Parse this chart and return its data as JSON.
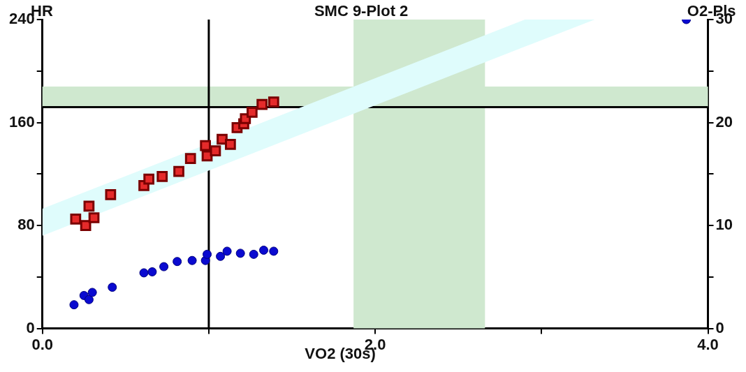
{
  "chart_data": {
    "type": "scatter",
    "title": "SMC 9-Plot 2",
    "xlabel": "VO2 (30s)",
    "ylabel": "HR",
    "y2label": "O2-Pls",
    "xlim": [
      0,
      4
    ],
    "xticks": [
      {
        "value": 0,
        "label": "0.0"
      },
      {
        "value": 1,
        "label": null
      },
      {
        "value": 2,
        "label": "2.0"
      },
      {
        "value": 3,
        "label": null
      },
      {
        "value": 4,
        "label": "4.0"
      }
    ],
    "ylim": [
      0,
      240
    ],
    "yticks": [
      0,
      {
        "value": 40,
        "label": null
      },
      80,
      {
        "value": 120,
        "label": null
      },
      160,
      {
        "value": 200,
        "label": null
      },
      240
    ],
    "y2lim": [
      0,
      30
    ],
    "y2ticks": [
      0,
      {
        "value": 5,
        "label": null
      },
      10,
      {
        "value": 15,
        "label": null
      },
      20,
      {
        "value": 25,
        "label": null
      },
      30
    ],
    "grid": false,
    "legend": false,
    "series": [
      {
        "type": "area",
        "color": "#dffcfc",
        "x": [
          0,
          2.9,
          3.32
        ],
        "values": [
          null,
          null,
          null
        ],
        "lower": [
          72,
          219,
          240
        ],
        "upper": [
          93,
          240,
          240
        ]
      },
      {
        "marker": "square",
        "color": "#e52a2a",
        "x": [
          0.2,
          0.26,
          0.31,
          0.28,
          0.41,
          0.61,
          0.64,
          0.72,
          0.82,
          0.89,
          0.99,
          0.98,
          1.04,
          1.08,
          1.13,
          1.17,
          1.21,
          1.22,
          1.26,
          1.32,
          1.39
        ],
        "values": [
          85,
          80,
          86,
          95,
          104,
          111,
          116,
          118,
          122,
          132,
          134,
          142,
          138,
          147,
          143,
          156,
          159,
          163,
          168,
          174,
          176
        ]
      },
      {
        "marker": "circle",
        "axis": "y2",
        "color": "#0a0ad0",
        "x": [
          0.19,
          0.25,
          0.28,
          0.3,
          0.42,
          0.61,
          0.66,
          0.73,
          0.81,
          0.9,
          0.98,
          0.99,
          1.07,
          1.11,
          1.19,
          1.27,
          1.33,
          1.39,
          3.87
        ],
        "values": [
          2.3,
          3.2,
          2.8,
          3.5,
          4.0,
          5.4,
          5.5,
          6.0,
          6.5,
          6.6,
          6.6,
          7.2,
          7.0,
          7.5,
          7.3,
          7.2,
          7.6,
          7.5,
          30
        ]
      }
    ],
    "ref_lines": [
      {
        "axis": "x",
        "value": 1.0,
        "color": "#000000"
      },
      {
        "axis": "y",
        "value": 172,
        "color": "#000000"
      }
    ],
    "bands": [
      {
        "axis": "y",
        "from": 172,
        "to": 188,
        "color": "#cfe8cf"
      },
      {
        "axis": "x",
        "from": 1.87,
        "to": 2.66,
        "color": "#cfe8cf"
      }
    ]
  }
}
